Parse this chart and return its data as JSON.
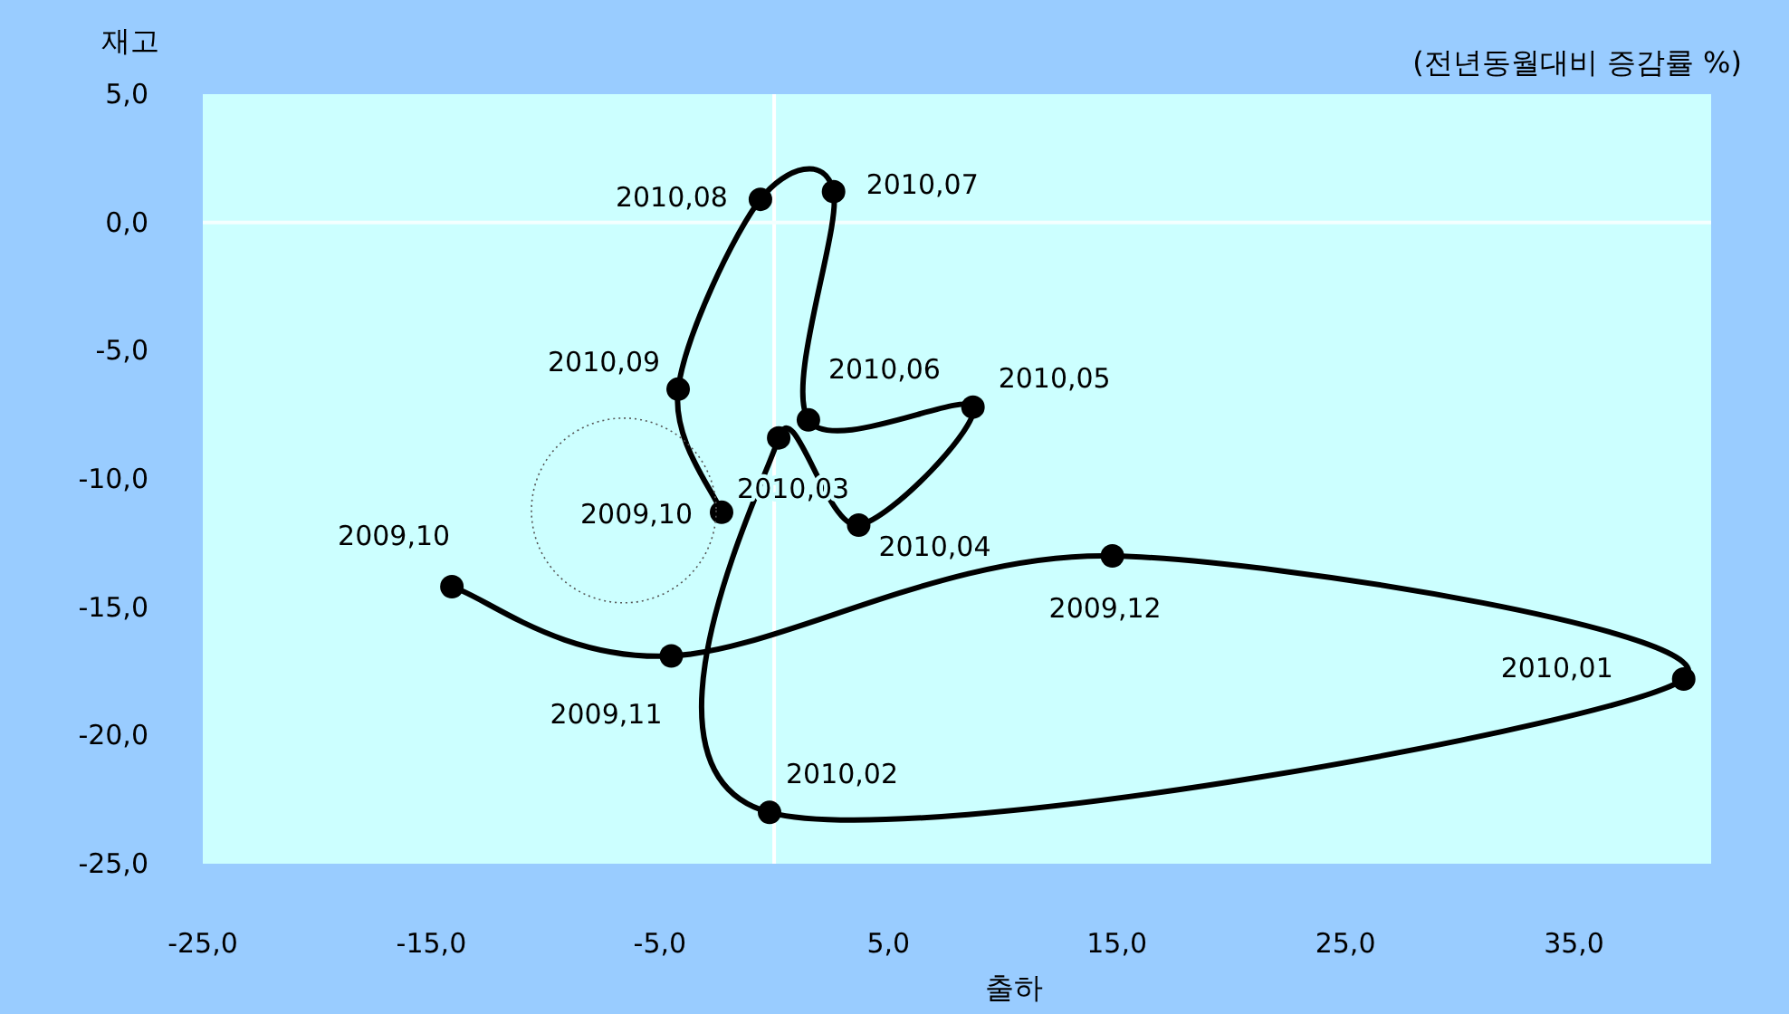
{
  "chart_data": {
    "type": "line",
    "subtitle": "(전년동월대비 증감률 %)",
    "xlabel": "출하",
    "ylabel": "재고",
    "x": [
      -14.1,
      -4.5,
      14.8,
      39.8,
      -0.2,
      0.2,
      3.7,
      8.7,
      1.5,
      2.6,
      -0.6,
      -4.2,
      -2.3
    ],
    "series": [
      {
        "color": "#000000",
        "values": [
          -14.2,
          -16.9,
          -13.0,
          -17.8,
          -23.0,
          -8.4,
          -11.8,
          -7.2,
          -7.7,
          1.2,
          0.9,
          -6.5,
          -11.3
        ]
      }
    ],
    "marker": "circle",
    "line_style": "solid",
    "grid": false,
    "xlim": [
      -25,
      41
    ],
    "ylim": [
      -25,
      5
    ],
    "xticks": [
      {
        "value": -25,
        "label": "-25,0"
      },
      {
        "value": -15,
        "label": "-15,0"
      },
      {
        "value": -5,
        "label": "-5,0"
      },
      {
        "value": 5,
        "label": "5,0"
      },
      {
        "value": 15,
        "label": "15,0"
      },
      {
        "value": 25,
        "label": "25,0"
      },
      {
        "value": 35,
        "label": "35,0"
      }
    ],
    "yticks": [
      {
        "value": 5,
        "label": "5,0"
      },
      {
        "value": 0,
        "label": "0,0"
      },
      {
        "value": -5,
        "label": "-5,0"
      },
      {
        "value": -10,
        "label": "-10,0"
      },
      {
        "value": -15,
        "label": "-15,0"
      },
      {
        "value": -20,
        "label": "-20,0"
      },
      {
        "value": -25,
        "label": "-25,0"
      }
    ],
    "ref_lines": [
      {
        "axis": "x",
        "value": 0,
        "color": "#ffffff"
      },
      {
        "axis": "y",
        "value": 0,
        "color": "#f4ffff"
      }
    ],
    "annotations": [
      {
        "text": "2009,10",
        "x": -14.1,
        "y": -14.2
      },
      {
        "text": "2009,11",
        "x": -4.5,
        "y": -16.9
      },
      {
        "text": "2009,12",
        "x": 14.8,
        "y": -13.0
      },
      {
        "text": "2010,01",
        "x": 39.8,
        "y": -17.8
      },
      {
        "text": "2010,02",
        "x": -0.2,
        "y": -23.0
      },
      {
        "text": "2010,03",
        "x": 0.2,
        "y": -8.4
      },
      {
        "text": "2010,04",
        "x": 3.7,
        "y": -11.8
      },
      {
        "text": "2010,05",
        "x": 8.7,
        "y": -7.2
      },
      {
        "text": "2010,06",
        "x": 1.5,
        "y": -7.7
      },
      {
        "text": "2010,07",
        "x": 2.6,
        "y": 1.2
      },
      {
        "text": "2010,08",
        "x": -0.6,
        "y": 0.9
      },
      {
        "text": "2010,09",
        "x": -4.2,
        "y": -6.5
      },
      {
        "text": "2009,10",
        "x": -2.3,
        "y": -11.3
      }
    ]
  }
}
